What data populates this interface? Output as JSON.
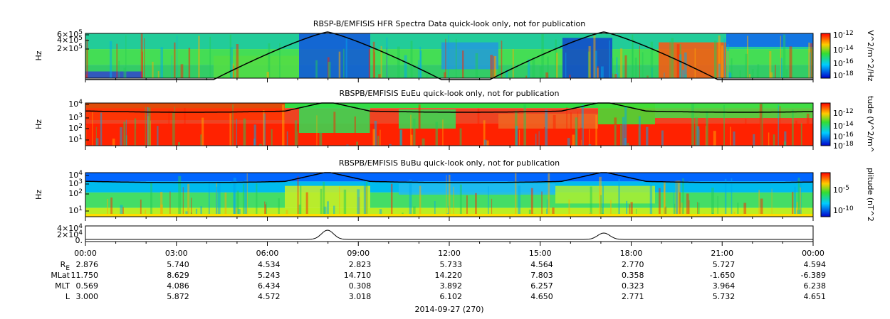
{
  "panels": [
    {
      "title": "RBSP-B/EMFISIS  HFR Spectra Data quick-look only, not for publication",
      "ylabel": "Hz",
      "yticks": [
        {
          "base": "6×10",
          "exp": "5"
        },
        {
          "base": "4×10",
          "exp": "5"
        },
        {
          "base": "2×10",
          "exp": "5"
        }
      ],
      "colorbar_label": "V^2/m^2/Hz",
      "colorbar_ticks": [
        {
          "base": "10",
          "exp": "-12"
        },
        {
          "base": "10",
          "exp": "-14"
        },
        {
          "base": "10",
          "exp": "-16"
        },
        {
          "base": "10",
          "exp": "-18"
        }
      ]
    },
    {
      "title": "RBSPB/EMFISIS  EuEu quick-look only, not for publication",
      "ylabel": "Hz",
      "yticks": [
        {
          "base": "10",
          "exp": "4"
        },
        {
          "base": "10",
          "exp": "3"
        },
        {
          "base": "10",
          "exp": "2"
        },
        {
          "base": "10",
          "exp": "1"
        }
      ],
      "colorbar_label": "tude (V^2/m^",
      "colorbar_ticks": [
        {
          "base": "10",
          "exp": "-12"
        },
        {
          "base": "10",
          "exp": "-14"
        },
        {
          "base": "10",
          "exp": "-16"
        },
        {
          "base": "10",
          "exp": "-18"
        }
      ]
    },
    {
      "title": "RBSPB/EMFISIS  BuBu quick-look only, not for publication",
      "ylabel": "Hz",
      "yticks": [
        {
          "base": "10",
          "exp": "4"
        },
        {
          "base": "10",
          "exp": "3"
        },
        {
          "base": "10",
          "exp": "2"
        },
        {
          "base": "10",
          "exp": "1"
        }
      ],
      "colorbar_label": "plitude (nT^2",
      "colorbar_ticks": [
        {
          "base": "10",
          "exp": "-5"
        },
        {
          "base": "10",
          "exp": "-10"
        }
      ]
    }
  ],
  "line_panel": {
    "yticks": [
      {
        "base": "4×10",
        "exp": "4"
      },
      {
        "base": "2×10",
        "exp": "4"
      },
      {
        "base": "0.",
        "exp": ""
      }
    ]
  },
  "times": [
    "00:00",
    "03:00",
    "06:00",
    "09:00",
    "12:00",
    "15:00",
    "18:00",
    "21:00",
    "00:00"
  ],
  "ephemeris": [
    {
      "label": "R",
      "sub": "E",
      "values": [
        "2.876",
        "5.740",
        "4.534",
        "2.823",
        "5.733",
        "4.564",
        "2.770",
        "5.727",
        "4.594"
      ]
    },
    {
      "label": "MLat",
      "sub": "",
      "values": [
        "11.750",
        "8.629",
        "5.243",
        "14.710",
        "14.220",
        "7.803",
        "0.358",
        "-1.650",
        "-6.389"
      ]
    },
    {
      "label": "MLT",
      "sub": "",
      "values": [
        "0.569",
        "4.086",
        "6.434",
        "0.308",
        "3.892",
        "6.257",
        "0.323",
        "3.964",
        "6.238"
      ]
    },
    {
      "label": "L",
      "sub": "",
      "values": [
        "3.000",
        "5.872",
        "4.572",
        "3.018",
        "6.102",
        "4.650",
        "2.771",
        "5.732",
        "4.651"
      ]
    }
  ],
  "date": "2014-09-27 (270)"
}
